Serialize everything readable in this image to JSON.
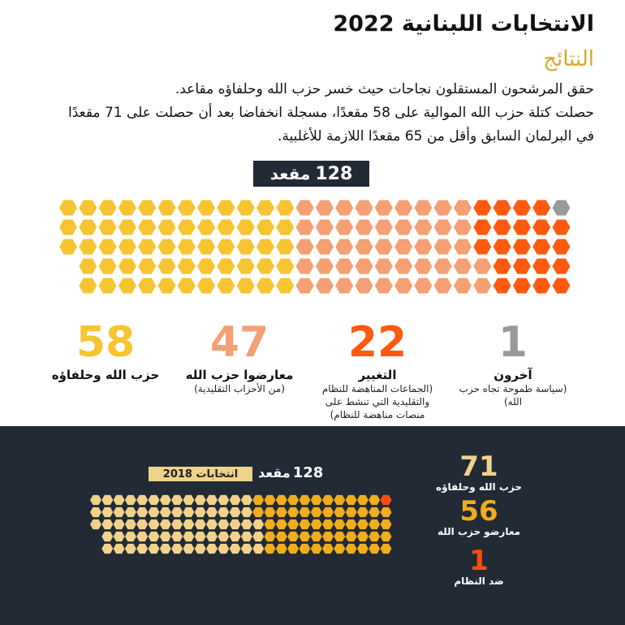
{
  "header": {
    "title": "الانتخابات اللبنانية 2022",
    "subtitle": "النتائج"
  },
  "intro": {
    "line1": "حقق المرشحون المستقلون نجاحات حيث خسر حزب الله وحلفاؤه مقاعد.",
    "line2": "حصلت كتلة حزب الله الموالية على 58 مقعدًا، مسجلة انخفاضا بعد أن حصلت على 71 مقعدًا",
    "line3": "في البرلمان السابق وأقل من 65 مقعدًا اللازمة للأغلبية."
  },
  "total": {
    "value": "128",
    "label": "مقعد"
  },
  "colors": {
    "hezbollah": "#f7c531",
    "traditional": "#f4a074",
    "change": "#ff5a0f",
    "other": "#9a9a9a",
    "dark_bg": "#222a36",
    "h2018": "#f0d28a",
    "opp2018": "#f0ad1c",
    "anti2018": "#ff4c10"
  },
  "results_2022": [
    {
      "value": "58",
      "name": "حزب الله وحلفاؤه",
      "note": "",
      "color": "#f7c531"
    },
    {
      "value": "47",
      "name": "معارضوا حزب الله",
      "note": "(من الأحزاب التقليدية)",
      "color": "#f4a074"
    },
    {
      "value": "22",
      "name": "التغيير",
      "note": "(الجماعات المناهضة للنظام والتقليدية التي تنشط على منصات مناهضة للنظام)",
      "color": "#ff5a0f"
    },
    {
      "value": "1",
      "name": "آخرون",
      "note": "(سياسة طموحة تجاه حزب الله)",
      "color": "#9a9a9a"
    }
  ],
  "elections_2018": {
    "badge": "انتخابات 2018",
    "total_value": "128",
    "total_label": "مقعد",
    "results": [
      {
        "value": "71",
        "name": "حزب الله وحلفاؤه",
        "color": "#f0d28a"
      },
      {
        "value": "56",
        "name": "معارضو حزب الله",
        "color": "#f0ad1c"
      },
      {
        "value": "1",
        "name": "ضد النظام",
        "color": "#ff4c10"
      }
    ]
  }
}
